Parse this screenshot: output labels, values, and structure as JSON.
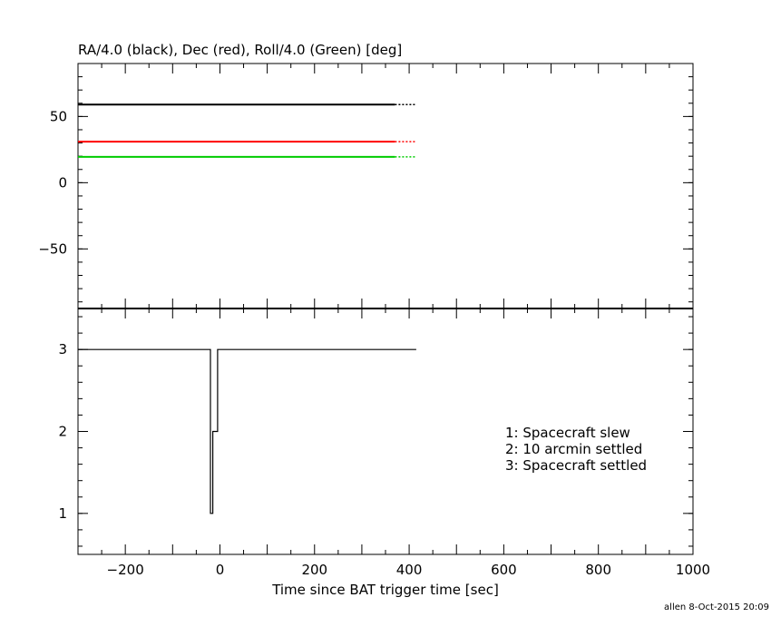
{
  "chart_data": [
    {
      "type": "line",
      "title": "RA/4.0 (black), Dec (red), Roll/4.0 (Green) [deg]",
      "xlim": [
        -300,
        1000
      ],
      "ylim": [
        -95,
        90
      ],
      "yticks": [
        -50,
        0,
        50
      ],
      "series": [
        {
          "color": "#000000",
          "x": [
            -300,
            370
          ],
          "y": [
            59,
            59
          ],
          "x_dotted": [
            370,
            415
          ],
          "y_dotted": [
            59,
            59
          ]
        },
        {
          "color": "#ff0000",
          "x": [
            -300,
            370
          ],
          "y": [
            31,
            31
          ],
          "x_dotted": [
            370,
            415
          ],
          "y_dotted": [
            31,
            31
          ]
        },
        {
          "color": "#00cc00",
          "x": [
            -300,
            370
          ],
          "y": [
            19.5,
            19.5
          ],
          "x_dotted": [
            370,
            415
          ],
          "y_dotted": [
            19.5,
            19.5
          ]
        }
      ]
    },
    {
      "type": "line",
      "xlabel": "Time since BAT trigger time [sec]",
      "xlim": [
        -300,
        1000
      ],
      "ylim": [
        0.5,
        3.5
      ],
      "xticks": [
        -200,
        0,
        200,
        400,
        600,
        800,
        1000
      ],
      "yticks": [
        1,
        2,
        3
      ],
      "series": [
        {
          "color": "#000000",
          "x": [
            -300,
            -20,
            -20,
            -15,
            -15,
            -5,
            -5,
            415
          ],
          "y": [
            3,
            3,
            1,
            1,
            2,
            2,
            3,
            3
          ]
        }
      ],
      "legend": [
        "1: Spacecraft slew",
        "2: 10 arcmin settled",
        "3: Spacecraft settled"
      ]
    }
  ],
  "footer": "allen  8-Oct-2015 20:09"
}
